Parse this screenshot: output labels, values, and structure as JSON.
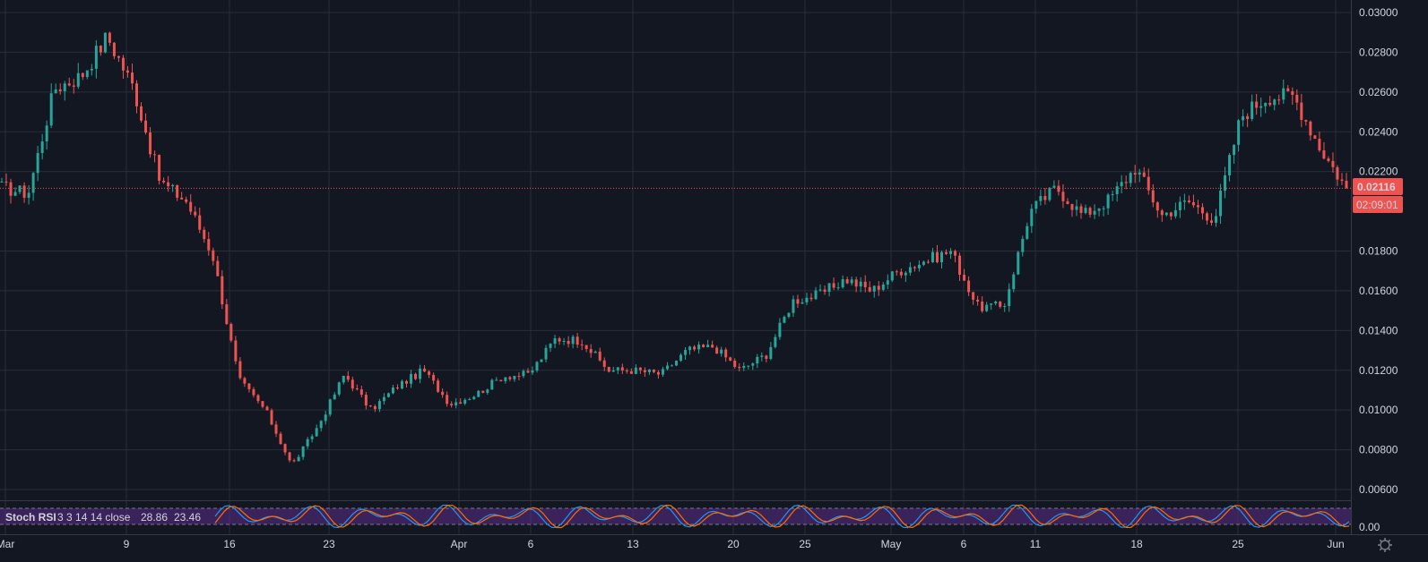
{
  "theme": {
    "background": "#131722",
    "grid": "#2a2e39",
    "up": "#26a69a",
    "down": "#ef5350",
    "text": "#d1d4dc",
    "rsi_k": "#2196f3",
    "rsi_d": "#ff6d00",
    "rsi_band": "#5b2c8a",
    "price_badge": "#ef5350"
  },
  "price_labels": [
    "0.03000",
    "0.02800",
    "0.02600",
    "0.02400",
    "0.02200",
    "0.01800",
    "0.01600",
    "0.01400",
    "0.01200",
    "0.01000",
    "0.00800",
    "0.00600"
  ],
  "rsi_label": "0.00",
  "current_price": "0.02116",
  "countdown": "02:09:01",
  "indicator": {
    "name": "Stoch RSI",
    "params": "3 3 14 14 close",
    "k_value": "28.86",
    "d_value": "23.46"
  },
  "date_labels": [
    "Mar",
    "9",
    "16",
    "23",
    "Apr",
    "6",
    "13",
    "20",
    "25",
    "May",
    "6",
    "11",
    "18",
    "25",
    "Jun"
  ],
  "chart_data": {
    "type": "candlestick",
    "y_range": [
      0.0055,
      0.0302
    ],
    "price_line": 0.02116,
    "segments": [
      {
        "date": "Mar",
        "close": 0.0212
      },
      {
        "date": "Mar 3",
        "close": 0.0209
      },
      {
        "date": "Mar 5",
        "close": 0.0262
      },
      {
        "date": "Mar 7",
        "close": 0.0268
      },
      {
        "date": "Mar 8",
        "close": 0.0288
      },
      {
        "date": "Mar 9",
        "close": 0.0262
      },
      {
        "date": "Mar 10",
        "close": 0.0215
      },
      {
        "date": "Mar 11",
        "close": 0.0205
      },
      {
        "date": "Mar 12",
        "close": 0.0178
      },
      {
        "date": "Mar 13",
        "close": 0.0115
      },
      {
        "date": "Mar 14",
        "close": 0.01
      },
      {
        "date": "Mar 16",
        "close": 0.0072
      },
      {
        "date": "Mar 18",
        "close": 0.0092
      },
      {
        "date": "Mar 20",
        "close": 0.0118
      },
      {
        "date": "Mar 23",
        "close": 0.01
      },
      {
        "date": "Mar 25",
        "close": 0.0112
      },
      {
        "date": "Mar 28",
        "close": 0.012
      },
      {
        "date": "Mar 30",
        "close": 0.0103
      },
      {
        "date": "Apr",
        "close": 0.0108
      },
      {
        "date": "Apr 3",
        "close": 0.0117
      },
      {
        "date": "Apr 6",
        "close": 0.0118
      },
      {
        "date": "Apr 7",
        "close": 0.0136
      },
      {
        "date": "Apr 9",
        "close": 0.0135
      },
      {
        "date": "Apr 10",
        "close": 0.012
      },
      {
        "date": "Apr 13",
        "close": 0.012
      },
      {
        "date": "Apr 15",
        "close": 0.0118
      },
      {
        "date": "Apr 17",
        "close": 0.013
      },
      {
        "date": "Apr 20",
        "close": 0.0132
      },
      {
        "date": "Apr 21",
        "close": 0.012
      },
      {
        "date": "Apr 23",
        "close": 0.0128
      },
      {
        "date": "Apr 25",
        "close": 0.0155
      },
      {
        "date": "Apr 28",
        "close": 0.0158
      },
      {
        "date": "Apr 30",
        "close": 0.0166
      },
      {
        "date": "May",
        "close": 0.016
      },
      {
        "date": "May 6",
        "close": 0.017
      },
      {
        "date": "May 7",
        "close": 0.0175
      },
      {
        "date": "May 9",
        "close": 0.018
      },
      {
        "date": "May 10",
        "close": 0.0152
      },
      {
        "date": "May 11",
        "close": 0.0152
      },
      {
        "date": "May 13",
        "close": 0.02
      },
      {
        "date": "May 14",
        "close": 0.0212
      },
      {
        "date": "May 16",
        "close": 0.0198
      },
      {
        "date": "May 18",
        "close": 0.0206
      },
      {
        "date": "May 19",
        "close": 0.0222
      },
      {
        "date": "May 21",
        "close": 0.0198
      },
      {
        "date": "May 23",
        "close": 0.0205
      },
      {
        "date": "May 25",
        "close": 0.0196
      },
      {
        "date": "May 27",
        "close": 0.0248
      },
      {
        "date": "May 28",
        "close": 0.0258
      },
      {
        "date": "May 30",
        "close": 0.0258
      },
      {
        "date": "May 31",
        "close": 0.0232
      },
      {
        "date": "Jun",
        "close": 0.02116
      }
    ]
  }
}
